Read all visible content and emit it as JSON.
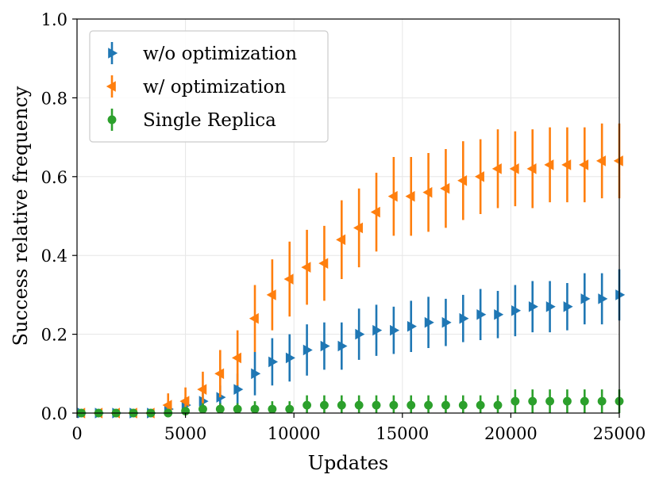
{
  "chart_data": {
    "type": "scatter",
    "title": "",
    "xlabel": "Updates",
    "ylabel": "Success relative frequency",
    "xlim": [
      0,
      25000
    ],
    "ylim": [
      0,
      1.0
    ],
    "x_ticks": [
      "0",
      "5000",
      "10000",
      "15000",
      "20000",
      "25000"
    ],
    "y_ticks": [
      "0.0",
      "0.2",
      "0.4",
      "0.6",
      "0.8",
      "1.0"
    ],
    "grid": true,
    "legend_position": "top-left",
    "x": [
      200,
      1000,
      1800,
      2600,
      3400,
      4200,
      5000,
      5800,
      6600,
      7400,
      8200,
      9000,
      9800,
      10600,
      11400,
      12200,
      13000,
      13800,
      14600,
      15400,
      16200,
      17000,
      17800,
      18600,
      19400,
      20200,
      21000,
      21800,
      22600,
      23400,
      24200,
      25000
    ],
    "series": [
      {
        "name": "w/o optimization",
        "color": "#1f77b4",
        "marker": "triangle-right",
        "values": [
          0.0,
          0.0,
          0.0,
          0.0,
          0.0,
          0.01,
          0.02,
          0.03,
          0.04,
          0.06,
          0.1,
          0.13,
          0.14,
          0.16,
          0.17,
          0.17,
          0.2,
          0.21,
          0.21,
          0.22,
          0.23,
          0.23,
          0.24,
          0.25,
          0.25,
          0.26,
          0.27,
          0.27,
          0.27,
          0.29,
          0.29,
          0.3
        ],
        "errors": [
          0.005,
          0.005,
          0.005,
          0.005,
          0.005,
          0.01,
          0.02,
          0.025,
          0.03,
          0.04,
          0.055,
          0.06,
          0.06,
          0.065,
          0.06,
          0.06,
          0.065,
          0.065,
          0.06,
          0.065,
          0.065,
          0.06,
          0.06,
          0.065,
          0.06,
          0.065,
          0.065,
          0.065,
          0.06,
          0.065,
          0.065,
          0.065
        ]
      },
      {
        "name": "w/ optimization",
        "color": "#ff7f0e",
        "marker": "triangle-left",
        "values": [
          0.0,
          0.0,
          0.0,
          0.0,
          0.0,
          0.02,
          0.03,
          0.06,
          0.1,
          0.14,
          0.24,
          0.3,
          0.34,
          0.37,
          0.38,
          0.44,
          0.47,
          0.51,
          0.55,
          0.55,
          0.56,
          0.57,
          0.59,
          0.6,
          0.62,
          0.62,
          0.62,
          0.63,
          0.63,
          0.63,
          0.64,
          0.64
        ],
        "errors": [
          0.005,
          0.005,
          0.005,
          0.005,
          0.005,
          0.03,
          0.035,
          0.045,
          0.06,
          0.07,
          0.085,
          0.09,
          0.095,
          0.095,
          0.095,
          0.1,
          0.1,
          0.1,
          0.1,
          0.1,
          0.1,
          0.1,
          0.1,
          0.095,
          0.1,
          0.095,
          0.1,
          0.095,
          0.095,
          0.095,
          0.095,
          0.095
        ]
      },
      {
        "name": "Single Replica",
        "color": "#2ca02c",
        "marker": "circle",
        "values": [
          0.0,
          0.0,
          0.0,
          0.0,
          0.0,
          0.0,
          0.005,
          0.01,
          0.01,
          0.01,
          0.01,
          0.01,
          0.01,
          0.02,
          0.02,
          0.02,
          0.02,
          0.02,
          0.02,
          0.02,
          0.02,
          0.02,
          0.02,
          0.02,
          0.02,
          0.03,
          0.03,
          0.03,
          0.03,
          0.03,
          0.03,
          0.03
        ],
        "errors": [
          0.003,
          0.003,
          0.003,
          0.003,
          0.003,
          0.005,
          0.01,
          0.015,
          0.015,
          0.015,
          0.02,
          0.02,
          0.02,
          0.025,
          0.025,
          0.025,
          0.025,
          0.025,
          0.025,
          0.025,
          0.025,
          0.025,
          0.025,
          0.025,
          0.025,
          0.03,
          0.03,
          0.03,
          0.03,
          0.03,
          0.03,
          0.03
        ]
      }
    ]
  }
}
